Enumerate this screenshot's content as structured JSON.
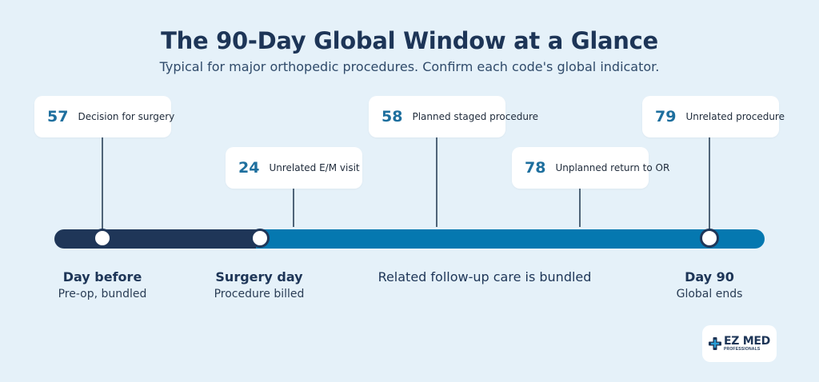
{
  "header": {
    "title": "The 90-Day Global Window at a Glance",
    "subtitle": "Typical for major orthopedic procedures. Confirm each code's global indicator."
  },
  "modifiers": [
    {
      "code": "57",
      "label": "Decision for surgery"
    },
    {
      "code": "24",
      "label": "Unrelated E/M visit"
    },
    {
      "code": "58",
      "label": "Planned staged procedure"
    },
    {
      "code": "78",
      "label": "Unplanned return to OR"
    },
    {
      "code": "79",
      "label": "Unrelated procedure"
    }
  ],
  "stages": [
    {
      "title": "Day before",
      "subtitle": "Pre-op, bundled"
    },
    {
      "title": "Surgery day",
      "subtitle": "Procedure billed"
    },
    {
      "title": "Day 90",
      "subtitle": "Global ends"
    }
  ],
  "middle_label": "Related follow-up care is bundled",
  "logo": {
    "line1": "EZ MED",
    "line2": "PROFESSIONALS",
    "icon": "medical-cross-icon"
  },
  "colors": {
    "background": "#e5f1f9",
    "track_preop": "#1f3658",
    "track_global": "#0578b0",
    "code_accent": "#1e6f9e",
    "title": "#1d3557"
  }
}
